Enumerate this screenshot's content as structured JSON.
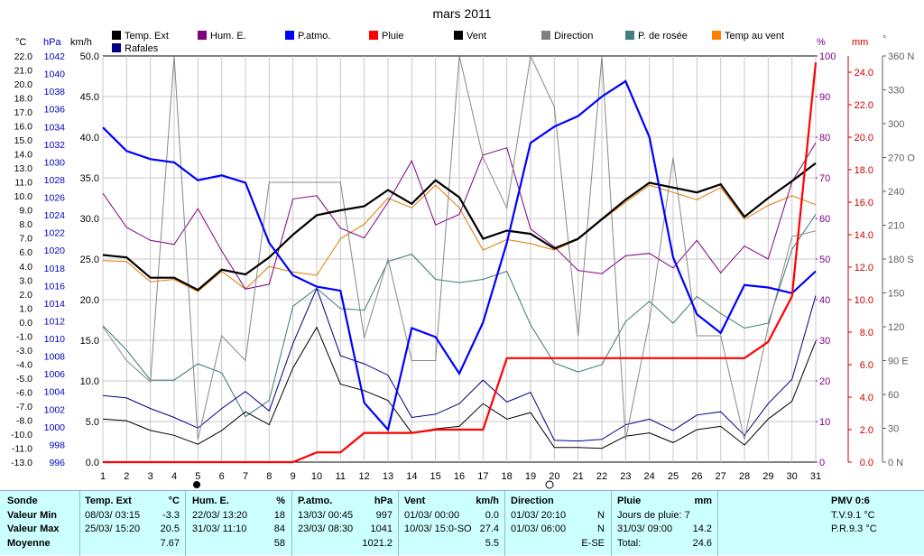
{
  "chart_data": {
    "type": "line",
    "title": "mars 2011",
    "x": [
      1,
      2,
      3,
      4,
      5,
      6,
      7,
      8,
      9,
      10,
      11,
      12,
      13,
      14,
      15,
      16,
      17,
      18,
      19,
      20,
      21,
      22,
      23,
      24,
      25,
      26,
      27,
      28,
      29,
      30,
      31
    ],
    "axes": {
      "temp_c": {
        "label": "°C",
        "ticks": [
          "22.0",
          "21.0",
          "20.0",
          "18.0",
          "17.0",
          "16.0",
          "15.0",
          "14.0",
          "13.0",
          "11.0",
          "10.0",
          "9.0",
          "8.0",
          "7.0",
          "6.0",
          "4.0",
          "3.0",
          "2.0",
          "1.0",
          "0.0",
          "-1.0",
          "-3.0",
          "-4.0",
          "-5.0",
          "-6.0",
          "-7.0",
          "-8.0",
          "-10.0",
          "-11.0",
          "-13.0"
        ]
      },
      "hpa": {
        "label": "hPa",
        "ticks": [
          "1042",
          "1040",
          "1038",
          "1036",
          "1034",
          "1032",
          "1030",
          "1028",
          "1026",
          "1024",
          "1022",
          "1020",
          "1018",
          "1016",
          "1014",
          "1012",
          "1010",
          "1008",
          "1006",
          "1004",
          "1002",
          "1000",
          "998",
          "996"
        ]
      },
      "kmh": {
        "label": "km/h",
        "range": [
          0,
          50
        ],
        "ticks": [
          "50.0",
          "45.0",
          "40.0",
          "35.0",
          "30.0",
          "25.0",
          "20.0",
          "15.0",
          "10.0",
          "5.0",
          "0.0"
        ]
      },
      "pct": {
        "label": "%",
        "range": [
          0,
          100
        ],
        "ticks": [
          "100",
          "90",
          "80",
          "70",
          "60",
          "50",
          "40",
          "30",
          "20",
          "10",
          "0"
        ]
      },
      "mm": {
        "label": "mm",
        "range": [
          0,
          25
        ],
        "ticks": [
          "24.0",
          "22.0",
          "20.0",
          "18.0",
          "16.0",
          "14.0",
          "12.0",
          "10.0",
          "8.0",
          "6.0",
          "4.0",
          "2.0",
          "0.0"
        ]
      },
      "deg": {
        "label": "°",
        "range": [
          0,
          360
        ],
        "ticks": [
          "360 N",
          "330",
          "300",
          "270 O",
          "240",
          "210",
          "180 S",
          "150",
          "120",
          "90 E",
          "60",
          "30",
          "0 N"
        ]
      }
    },
    "legend": [
      {
        "name": "Temp. Ext",
        "color": "#000000"
      },
      {
        "name": "Rafales",
        "color": "#000080"
      },
      {
        "name": "Hum. E.",
        "color": "#800080"
      },
      {
        "name": "P.atmo.",
        "color": "#0000ff"
      },
      {
        "name": "Pluie",
        "color": "#ff0000"
      },
      {
        "name": "Vent",
        "color": "#000000"
      },
      {
        "name": "Direction",
        "color": "#808080"
      },
      {
        "name": "P. de rosée",
        "color": "#408080"
      },
      {
        "name": "Temp au vent",
        "color": "#ff8000"
      }
    ],
    "series": [
      {
        "name": "Temp. Ext",
        "color": "#000000",
        "width": 2.2,
        "axis": "kmh",
        "values": [
          25.5,
          25.2,
          22.7,
          22.7,
          21.2,
          23.7,
          23.1,
          25.2,
          28.0,
          30.4,
          31.0,
          31.5,
          33.5,
          31.8,
          34.7,
          32.6,
          27.5,
          28.5,
          28.1,
          26.3,
          27.5,
          29.9,
          32.3,
          34.4,
          33.8,
          33.2,
          34.2,
          30.2,
          32.5,
          34.6,
          36.8
        ]
      },
      {
        "name": "Temp au vent",
        "color": "#e07800",
        "width": 1,
        "axis": "kmh",
        "values": [
          24.8,
          24.7,
          22.2,
          22.5,
          21.0,
          23.5,
          21.3,
          24.1,
          23.4,
          23.0,
          27.5,
          29.3,
          32.5,
          31.3,
          34.1,
          31.3,
          26.1,
          27.4,
          26.9,
          26.1,
          27.4,
          29.8,
          32.0,
          34.1,
          33.2,
          32.3,
          33.8,
          29.9,
          31.6,
          32.8,
          31.7
        ]
      },
      {
        "name": "P.atmo.",
        "color": "#0000ff",
        "width": 2.2,
        "axis": "kmh",
        "values": [
          41.2,
          38.3,
          37.3,
          36.9,
          34.7,
          35.3,
          34.4,
          27.0,
          23.0,
          21.6,
          21.1,
          7.3,
          4.0,
          16.5,
          15.4,
          10.9,
          17.2,
          27.0,
          39.3,
          41.3,
          42.6,
          45.0,
          46.9,
          40.0,
          25.2,
          18.2,
          15.9,
          21.8,
          21.5,
          20.8,
          23.5
        ]
      },
      {
        "name": "Hum. E.",
        "color": "#800080",
        "width": 1,
        "axis": "kmh",
        "values": [
          33.1,
          28.9,
          27.3,
          26.8,
          31.2,
          26.0,
          21.3,
          21.9,
          32.4,
          32.8,
          28.8,
          27.6,
          32.0,
          37.1,
          29.2,
          30.5,
          37.8,
          38.7,
          28.7,
          26.5,
          23.6,
          23.2,
          25.4,
          25.7,
          23.9,
          27.3,
          23.3,
          26.6,
          25.0,
          34.5,
          39.3
        ]
      },
      {
        "name": "P. de rosée",
        "color": "#3c7878",
        "width": 1,
        "axis": "kmh",
        "values": [
          16.8,
          13.8,
          10.1,
          10.1,
          12.1,
          11.0,
          5.6,
          7.6,
          19.2,
          21.4,
          18.9,
          18.7,
          24.7,
          25.6,
          22.5,
          22.1,
          22.5,
          23.5,
          16.9,
          12.2,
          11.1,
          12.0,
          17.3,
          19.8,
          17.1,
          20.4,
          18.3,
          16.5,
          17.1,
          26.2,
          30.5
        ]
      },
      {
        "name": "Rafales",
        "color": "#000080",
        "width": 1,
        "axis": "kmh",
        "values": [
          8.2,
          7.9,
          6.6,
          5.5,
          4.2,
          6.6,
          8.7,
          6.3,
          14.6,
          21.4,
          13.1,
          12.1,
          10.7,
          5.5,
          5.9,
          7.2,
          10.1,
          7.4,
          8.6,
          2.7,
          2.6,
          2.8,
          4.6,
          5.3,
          3.9,
          5.8,
          6.2,
          3.3,
          7.2,
          10.2,
          20.5
        ]
      },
      {
        "name": "Vent",
        "color": "#000000",
        "width": 1,
        "axis": "kmh",
        "values": [
          5.3,
          5.1,
          3.9,
          3.3,
          2.2,
          3.9,
          6.2,
          4.6,
          11.6,
          16.6,
          9.6,
          8.8,
          7.6,
          3.6,
          4.1,
          4.4,
          7.2,
          5.3,
          6.1,
          1.8,
          1.8,
          1.7,
          3.2,
          3.6,
          2.4,
          4.0,
          4.4,
          2.1,
          5.3,
          7.5,
          14.9
        ]
      },
      {
        "name": "Direction",
        "color": "#888888",
        "width": 1,
        "axis": "deg",
        "values": [
          120,
          90,
          71,
          360,
          20,
          112,
          90,
          248,
          248,
          248,
          248,
          110,
          180,
          90,
          90,
          360,
          270,
          225,
          360,
          315,
          112,
          360,
          20,
          125,
          270,
          112,
          112,
          20,
          120,
          200,
          205
        ]
      },
      {
        "name": "Pluie",
        "color": "#ff0000",
        "width": 2.2,
        "axis": "mm",
        "values": [
          0,
          0,
          0,
          0,
          0,
          0,
          0,
          0,
          0,
          0.6,
          0.6,
          1.8,
          1.8,
          1.8,
          2.0,
          2.0,
          2.0,
          6.4,
          6.4,
          6.4,
          6.4,
          6.4,
          6.4,
          6.4,
          6.4,
          6.4,
          6.4,
          6.4,
          7.4,
          10.2,
          24.6
        ]
      }
    ]
  },
  "stats": {
    "sonde": {
      "header": "Sonde",
      "rows": [
        "Valeur Min",
        "Valeur Max",
        "Moyenne"
      ]
    },
    "temp": {
      "header": "Temp. Ext",
      "unit": "°C",
      "min_time": "08/03/ 03:15",
      "min_val": "-3.3",
      "max_time": "25/03/ 15:20",
      "max_val": "20.5",
      "avg": "7.67"
    },
    "hum": {
      "header": "Hum. E.",
      "unit": "%",
      "min_time": "22/03/ 13:20",
      "min_val": "18",
      "max_time": "31/03/ 11:10",
      "max_val": "84",
      "avg": "58"
    },
    "patmo": {
      "header": "P.atmo.",
      "unit": "hPa",
      "min_time": "13/03/ 00:45",
      "min_val": "997",
      "max_time": "23/03/ 08:30",
      "max_val": "1041",
      "avg": "1021.2"
    },
    "vent": {
      "header": "Vent",
      "unit": "km/h",
      "min_time": "01/03/ 00:00",
      "min_val": "0.0",
      "max_time": "10/03/ 15:0-SO",
      "max_val": "27.4",
      "avg": "5.5"
    },
    "dir": {
      "header": "Direction",
      "min_time": "01/03/ 20:10",
      "min_val": "N",
      "max_time": "01/03/ 06:00",
      "max_val": "N",
      "avg": "E-SE"
    },
    "pluie": {
      "header": "Pluie",
      "unit": "mm",
      "row1": "Jours de pluie: 7",
      "max_time": "31/03/ 09:00",
      "max_val": "14.2",
      "total_label": "Total:",
      "total_val": "24.6"
    },
    "pmv": {
      "header": "PMV 0:6",
      "tv": "T.V.9.1 °C",
      "pr": "P.R.9.3 °C"
    }
  }
}
